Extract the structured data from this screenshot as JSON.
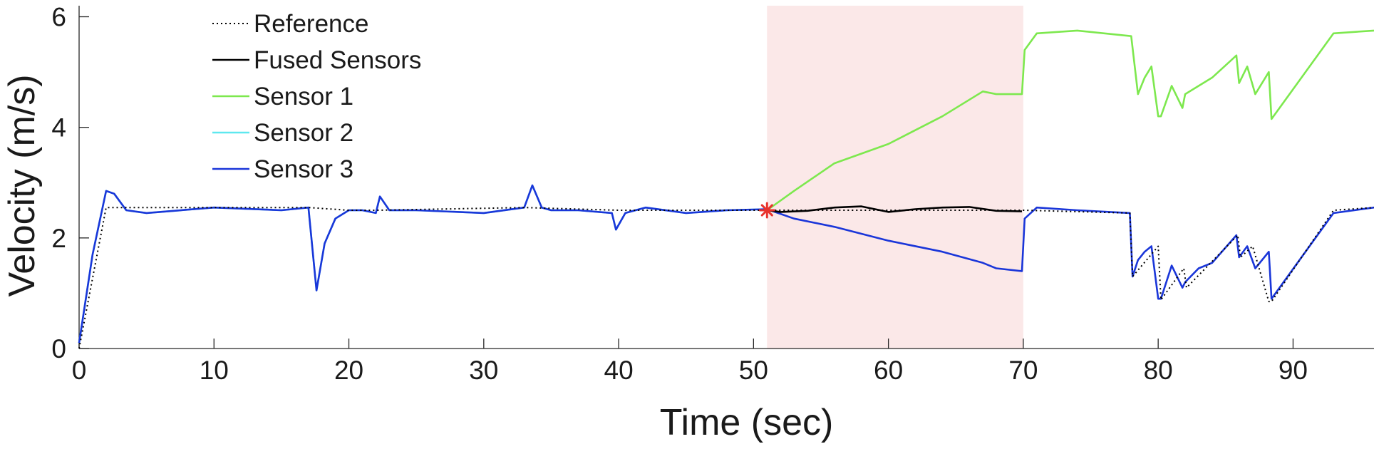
{
  "chart_data": {
    "type": "line",
    "title": "",
    "xlabel": "Time (sec)",
    "ylabel": "Velocity (m/s)",
    "xlim": [
      0,
      96
    ],
    "ylim": [
      0,
      6.2
    ],
    "xticks": [
      0,
      10,
      20,
      30,
      40,
      50,
      60,
      70,
      80,
      90
    ],
    "yticks": [
      0,
      2,
      4,
      6
    ],
    "grid": false,
    "legend_position": "top-left",
    "highlight_region": {
      "x_start": 51,
      "x_end": 70,
      "color": "#fbe8e8"
    },
    "fault_marker": {
      "x": 51,
      "y": 2.5,
      "color": "#e8322c",
      "symbol": "asterisk"
    },
    "series": [
      {
        "name": "Reference",
        "color": "#000000",
        "style": "dotted",
        "x": [
          0,
          2,
          17,
          20,
          22,
          33,
          40,
          51,
          69.9,
          70.1,
          77.9,
          78.1,
          80,
          80.2,
          81.9,
          82.1,
          85.9,
          86.1,
          87,
          88.2,
          88.4,
          93,
          96
        ],
        "y": [
          0,
          2.55,
          2.55,
          2.5,
          2.5,
          2.55,
          2.5,
          2.5,
          2.5,
          2.5,
          2.45,
          1.3,
          1.85,
          0.88,
          1.45,
          1.1,
          2.05,
          1.65,
          1.85,
          0.85,
          0.85,
          2.5,
          2.55
        ]
      },
      {
        "name": "Fused Sensors",
        "color": "#000000",
        "style": "solid",
        "x": [
          51,
          52,
          54,
          56,
          58,
          60,
          62,
          64,
          66,
          68,
          69.9
        ],
        "y": [
          2.5,
          2.47,
          2.49,
          2.55,
          2.57,
          2.47,
          2.52,
          2.55,
          2.56,
          2.49,
          2.48
        ]
      },
      {
        "name": "Sensor 1",
        "color": "#7de84e",
        "style": "solid",
        "x": [
          51,
          53,
          56,
          60,
          64,
          67,
          68,
          69.9,
          70.1,
          71,
          74,
          78,
          78.5,
          79,
          79.5,
          80,
          80.2,
          81,
          81.8,
          82,
          84,
          85.8,
          86,
          86.6,
          87.2,
          88.2,
          88.4,
          93,
          96
        ],
        "y": [
          2.5,
          2.85,
          3.35,
          3.7,
          4.2,
          4.65,
          4.6,
          4.6,
          5.4,
          5.7,
          5.75,
          5.65,
          4.6,
          4.9,
          5.1,
          4.2,
          4.2,
          4.75,
          4.35,
          4.6,
          4.9,
          5.3,
          4.8,
          5.1,
          4.6,
          5.0,
          4.15,
          5.7,
          5.75
        ]
      },
      {
        "name": "Sensor 2",
        "color": "#5ee8ef",
        "style": "solid",
        "x": [
          0,
          1,
          2,
          2.6,
          3.5,
          5,
          10,
          15,
          17,
          17.6,
          18.2,
          19,
          20,
          21,
          22,
          22.3,
          23,
          25,
          30,
          33,
          33.6,
          34.3,
          35,
          37,
          39.5,
          39.8,
          40.5,
          42,
          45,
          48,
          51
        ],
        "y": [
          0.1,
          1.7,
          2.85,
          2.8,
          2.5,
          2.45,
          2.55,
          2.5,
          2.55,
          1.05,
          1.9,
          2.35,
          2.5,
          2.5,
          2.45,
          2.75,
          2.5,
          2.5,
          2.45,
          2.55,
          2.95,
          2.55,
          2.5,
          2.5,
          2.45,
          2.15,
          2.45,
          2.55,
          2.45,
          2.5,
          2.52
        ]
      },
      {
        "name": "Sensor 3",
        "color": "#1a36d9",
        "style": "solid",
        "x": [
          0,
          1,
          2,
          2.6,
          3.5,
          5,
          10,
          15,
          17,
          17.6,
          18.2,
          19,
          20,
          21,
          22,
          22.3,
          23,
          25,
          30,
          33,
          33.6,
          34.3,
          35,
          37,
          39.5,
          39.8,
          40.5,
          42,
          45,
          48,
          51,
          53,
          56,
          60,
          64,
          67,
          68,
          69.9,
          70.1,
          71,
          74,
          77.9,
          78.1,
          78.5,
          79,
          79.5,
          80,
          80.2,
          81,
          81.8,
          82,
          83,
          84,
          85.8,
          86,
          86.6,
          87.2,
          88.2,
          88.4,
          93,
          96
        ],
        "y": [
          0.1,
          1.7,
          2.85,
          2.8,
          2.5,
          2.45,
          2.55,
          2.5,
          2.55,
          1.05,
          1.9,
          2.35,
          2.5,
          2.5,
          2.45,
          2.75,
          2.5,
          2.5,
          2.45,
          2.55,
          2.95,
          2.55,
          2.5,
          2.5,
          2.45,
          2.15,
          2.45,
          2.55,
          2.45,
          2.5,
          2.52,
          2.35,
          2.2,
          1.95,
          1.75,
          1.55,
          1.45,
          1.4,
          2.35,
          2.55,
          2.5,
          2.45,
          1.3,
          1.6,
          1.75,
          1.85,
          0.9,
          0.9,
          1.5,
          1.1,
          1.2,
          1.45,
          1.55,
          2.05,
          1.65,
          1.85,
          1.45,
          1.75,
          0.9,
          2.45,
          2.55
        ]
      }
    ]
  }
}
